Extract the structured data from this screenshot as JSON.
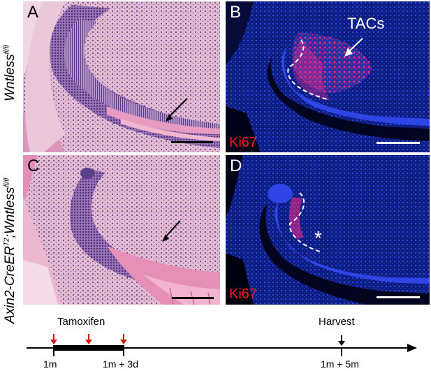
{
  "figure": {
    "row_labels": [
      {
        "gene": "Wntless",
        "sup": "fl/fl"
      },
      {
        "prefix": "Axin2-CreER",
        "prefix_sup": "T2",
        "sep": ";",
        "gene": "Wntless",
        "sup": "fl/fl"
      }
    ],
    "panels": [
      {
        "id": "A",
        "label": "A",
        "type": "H&E"
      },
      {
        "id": "B",
        "label": "B",
        "type": "IF",
        "stain": "Ki67",
        "annotation": "TACs"
      },
      {
        "id": "C",
        "label": "C",
        "type": "H&E"
      },
      {
        "id": "D",
        "label": "D",
        "type": "IF",
        "stain": "Ki67",
        "annotation": "*"
      }
    ],
    "colors": {
      "he_background": "#e7c3d6",
      "he_tissue": "#c98ab2",
      "he_nuclei": "#5a3f8a",
      "enamel": "#e99ac0",
      "if_background": "#000000",
      "dapi": "#1f3bd6",
      "ki67": "#ff1a6e",
      "ki67_label": "#ff1a1a",
      "timeline_arrow": "#e01010"
    }
  },
  "timeline": {
    "events": [
      {
        "label": "Tamoxifen"
      },
      {
        "label": "Harvest"
      }
    ],
    "ticks": [
      {
        "label": "1m"
      },
      {
        "label": "1m + 3d"
      },
      {
        "label": "1m + 5m"
      }
    ],
    "injections": 3
  }
}
